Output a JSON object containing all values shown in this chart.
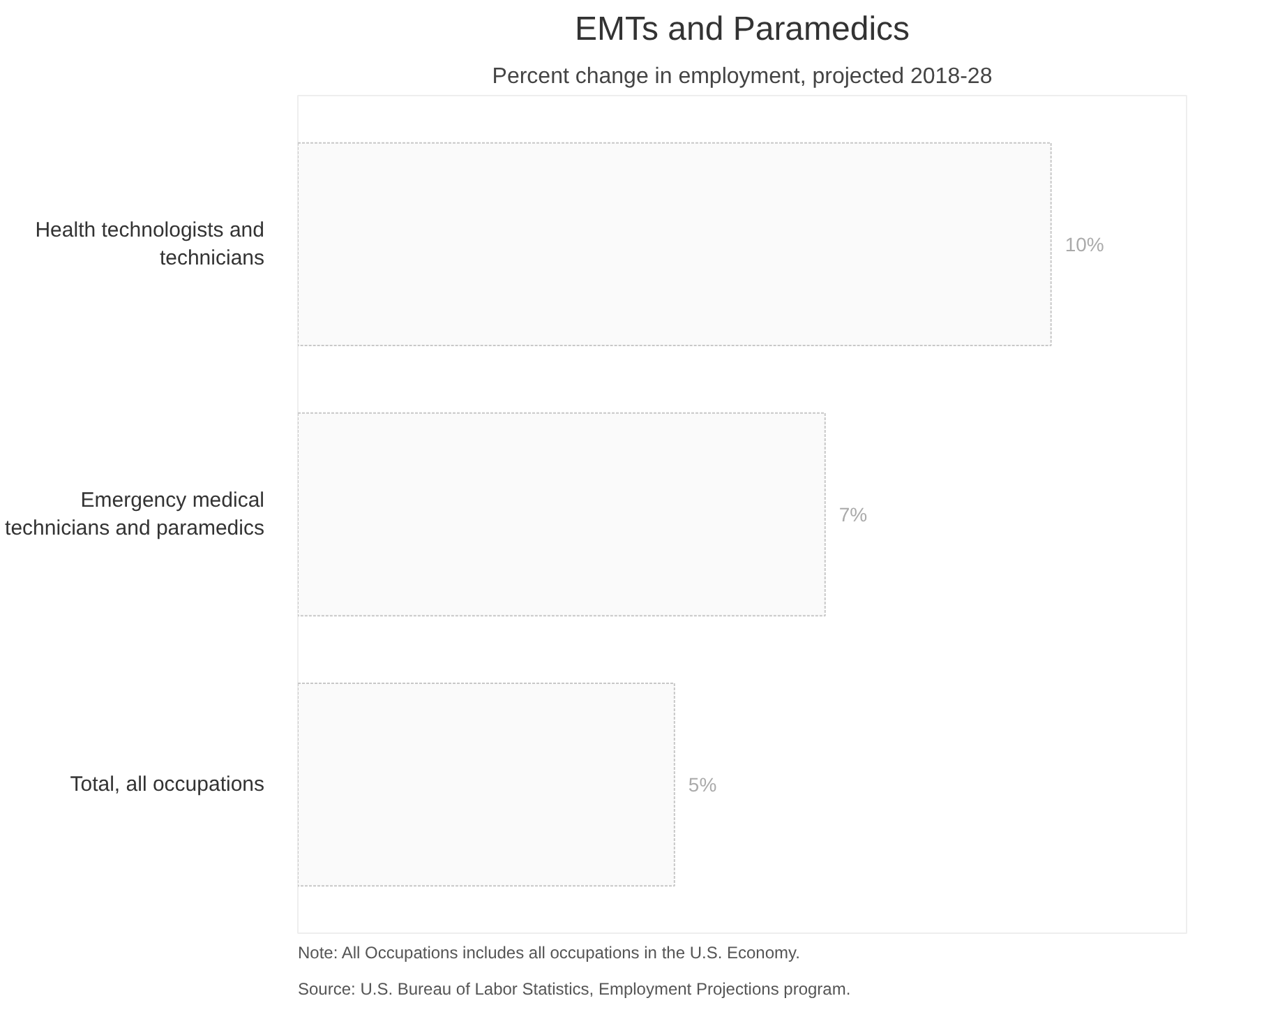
{
  "chart_data": {
    "type": "bar",
    "orientation": "horizontal",
    "title": "EMTs and Paramedics",
    "subtitle": "Percent change in employment, projected 2018-28",
    "categories": [
      "Health technologists and technicians",
      "Emergency medical technicians and paramedics",
      "Total, all occupations"
    ],
    "values": [
      10,
      7,
      5
    ],
    "color": "#fafafa",
    "value_labels": [
      "10%",
      "7%",
      "5%"
    ],
    "annotations": [
      "Note: All Occupations includes all occupations in the U.S. Economy.",
      "Source: U.S. Bureau of Labor Statistics, Employment Projections program."
    ],
    "grid": false
  }
}
